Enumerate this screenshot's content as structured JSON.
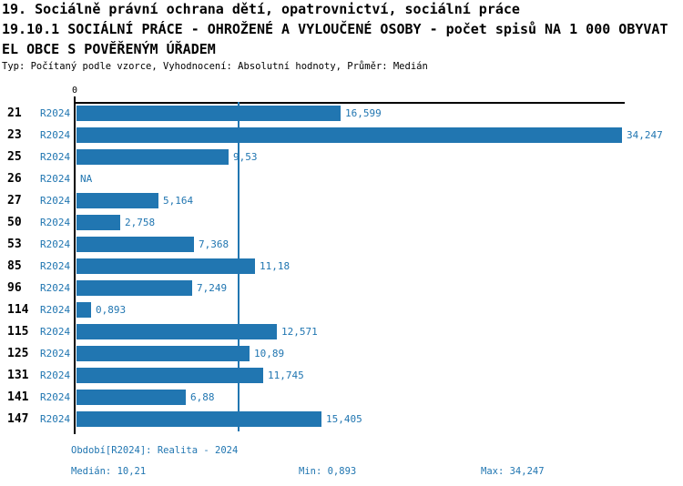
{
  "header": {
    "line1": "19. Sociálně právní ochrana dětí, opatrovnictví, sociální práce",
    "line2": "19.10.1 SOCIÁLNÍ PRÁCE - OHROŽENÉ A VYLOUČENÉ OSOBY - počet spisů NA 1 000 OBYVAT",
    "line3": "EL OBCE S POVĚŘENÝM ÚŘADEM",
    "meta": "Typ: Počítaný podle vzorce, Vyhodnocení: Absolutní hodnoty, Průměr: Medián"
  },
  "chart_data": {
    "type": "bar",
    "orientation": "horizontal",
    "title": "19.10.1 SOCIÁLNÍ PRÁCE - OHROŽENÉ A VYLOUČENÉ OSOBY - počet spisů NA 1 000 OBYVATEL OBCE S POVĚŘENÝM ÚŘADEM",
    "series_name": "R2024",
    "categories": [
      "21",
      "23",
      "25",
      "26",
      "27",
      "50",
      "53",
      "85",
      "96",
      "114",
      "115",
      "125",
      "131",
      "141",
      "147"
    ],
    "values": [
      16.599,
      34.247,
      9.53,
      null,
      5.164,
      2.758,
      7.368,
      11.18,
      7.249,
      0.893,
      12.571,
      10.89,
      11.745,
      6.88,
      15.405
    ],
    "value_labels": [
      "16,599",
      "34,247",
      "9,53",
      "NA",
      "5,164",
      "2,758",
      "7,368",
      "11,18",
      "7,249",
      "0,893",
      "12,571",
      "10,89",
      "11,745",
      "6,88",
      "15,405"
    ],
    "axis_zero_label": "0",
    "xlim": [
      0,
      34.247
    ],
    "median_value": 10.21,
    "grid": false,
    "legend_position": "none",
    "bar_color": "#2176b1",
    "axis_color": "#000000",
    "label_color": "#2176b1"
  },
  "footer": {
    "period": "Období[R2024]: Realita - 2024",
    "median": "Medián: 10,21",
    "min": "Min: 0,893",
    "max": "Max: 34,247"
  }
}
